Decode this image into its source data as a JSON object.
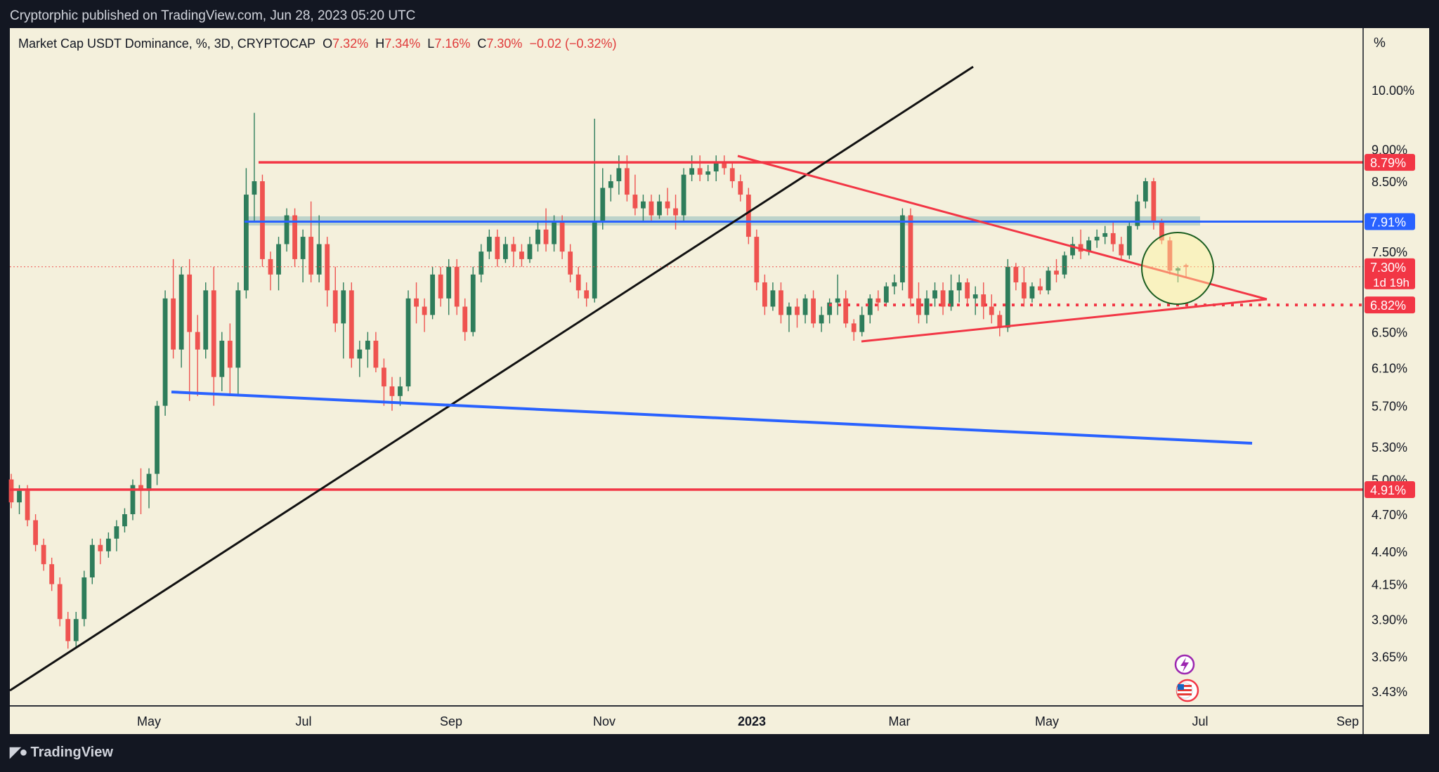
{
  "header": {
    "publisher_line": "Cryptorphic published on TradingView.com, Jun 28, 2023 05:20 UTC"
  },
  "legend": {
    "symbol": "Market Cap USDT Dominance, %, 3D, CRYPTOCAP",
    "o_label": "O",
    "o_value": "7.32%",
    "h_label": "H",
    "h_value": "7.34%",
    "l_label": "L",
    "l_value": "7.16%",
    "c_label": "C",
    "c_value": "7.30%",
    "change": "−0.02 (−0.32%)"
  },
  "price_axis": {
    "unit": "%",
    "ticks": [
      "10.00%",
      "9.00%",
      "8.50%",
      "7.50%",
      "6.50%",
      "6.10%",
      "5.70%",
      "5.30%",
      "5.00%",
      "4.70%",
      "4.40%",
      "4.15%",
      "3.90%",
      "3.65%",
      "3.43%"
    ],
    "badges": [
      {
        "text": "8.79%",
        "color": "#f23645"
      },
      {
        "text": "7.91%",
        "color": "#2962ff"
      },
      {
        "text": "7.30%",
        "sub": "1d 19h",
        "color": "#f23645"
      },
      {
        "text": "6.82%",
        "color": "#f23645"
      },
      {
        "text": "4.91%",
        "color": "#f23645"
      }
    ]
  },
  "time_axis": {
    "labels": [
      "May",
      "Jul",
      "Sep",
      "Nov",
      "2023",
      "Mar",
      "May",
      "Jul",
      "Sep"
    ]
  },
  "footer": {
    "brand": "TradingView"
  },
  "colors": {
    "up": "#26a69a",
    "down": "#ef5350",
    "up_body": "#2e7d5b",
    "background": "#f4f0dc",
    "support_red": "#f23645",
    "trend_blue": "#2962ff"
  },
  "chart_data": {
    "type": "candlestick",
    "title": "Market Cap USDT Dominance, %, 3D, CRYPTOCAP",
    "y_scale": "log",
    "ylim": [
      3.35,
      11.2
    ],
    "candles": [
      [
        5.0,
        5.05,
        4.75,
        4.8
      ],
      [
        4.8,
        4.95,
        4.7,
        4.9
      ],
      [
        4.9,
        4.95,
        4.6,
        4.65
      ],
      [
        4.65,
        4.7,
        4.4,
        4.45
      ],
      [
        4.45,
        4.5,
        4.25,
        4.3
      ],
      [
        4.3,
        4.35,
        4.1,
        4.15
      ],
      [
        4.15,
        4.2,
        3.85,
        3.9
      ],
      [
        3.9,
        3.95,
        3.7,
        3.75
      ],
      [
        3.75,
        3.95,
        3.7,
        3.9
      ],
      [
        3.9,
        4.25,
        3.85,
        4.2
      ],
      [
        4.2,
        4.5,
        4.15,
        4.45
      ],
      [
        4.45,
        4.5,
        4.3,
        4.4
      ],
      [
        4.4,
        4.55,
        4.35,
        4.5
      ],
      [
        4.5,
        4.65,
        4.4,
        4.6
      ],
      [
        4.6,
        4.75,
        4.55,
        4.7
      ],
      [
        4.7,
        5.0,
        4.65,
        4.95
      ],
      [
        4.95,
        5.1,
        4.7,
        4.9
      ],
      [
        4.9,
        5.1,
        4.75,
        5.05
      ],
      [
        5.05,
        5.75,
        4.95,
        5.7
      ],
      [
        5.7,
        7.0,
        5.6,
        6.9
      ],
      [
        6.9,
        7.4,
        6.2,
        6.3
      ],
      [
        6.3,
        7.3,
        6.1,
        7.2
      ],
      [
        7.2,
        7.4,
        5.75,
        6.5
      ],
      [
        6.5,
        6.7,
        5.8,
        6.3
      ],
      [
        6.3,
        7.1,
        6.2,
        7.0
      ],
      [
        7.0,
        7.3,
        5.7,
        6.0
      ],
      [
        6.0,
        6.5,
        5.85,
        6.4
      ],
      [
        6.4,
        6.6,
        5.8,
        6.1
      ],
      [
        6.1,
        7.1,
        5.8,
        7.0
      ],
      [
        7.0,
        8.7,
        6.9,
        8.3
      ],
      [
        8.3,
        9.6,
        7.9,
        8.5
      ],
      [
        8.5,
        8.6,
        7.3,
        7.4
      ],
      [
        7.4,
        7.5,
        7.0,
        7.2
      ],
      [
        7.2,
        7.7,
        7.0,
        7.6
      ],
      [
        7.6,
        8.1,
        7.5,
        8.0
      ],
      [
        8.0,
        8.1,
        7.3,
        7.4
      ],
      [
        7.4,
        7.8,
        7.1,
        7.7
      ],
      [
        7.7,
        8.2,
        7.1,
        7.2
      ],
      [
        7.2,
        8.0,
        7.1,
        7.6
      ],
      [
        7.6,
        7.7,
        6.8,
        7.0
      ],
      [
        7.0,
        7.3,
        6.5,
        6.6
      ],
      [
        6.6,
        7.1,
        6.2,
        7.0
      ],
      [
        7.0,
        7.1,
        6.1,
        6.2
      ],
      [
        6.2,
        6.4,
        6.0,
        6.3
      ],
      [
        6.3,
        6.5,
        6.1,
        6.4
      ],
      [
        6.4,
        6.5,
        6.05,
        6.1
      ],
      [
        6.1,
        6.2,
        5.7,
        5.9
      ],
      [
        5.9,
        6.0,
        5.65,
        5.8
      ],
      [
        5.8,
        6.0,
        5.7,
        5.9
      ],
      [
        5.9,
        7.0,
        5.85,
        6.9
      ],
      [
        6.9,
        7.1,
        6.6,
        6.8
      ],
      [
        6.8,
        6.9,
        6.5,
        6.7
      ],
      [
        6.7,
        7.3,
        6.65,
        7.2
      ],
      [
        7.2,
        7.3,
        6.8,
        6.9
      ],
      [
        6.9,
        7.4,
        6.7,
        7.3
      ],
      [
        7.3,
        7.4,
        6.7,
        6.8
      ],
      [
        6.8,
        6.9,
        6.4,
        6.5
      ],
      [
        6.5,
        7.3,
        6.45,
        7.2
      ],
      [
        7.2,
        7.6,
        7.1,
        7.5
      ],
      [
        7.5,
        7.8,
        7.4,
        7.7
      ],
      [
        7.7,
        7.8,
        7.3,
        7.4
      ],
      [
        7.4,
        7.7,
        7.35,
        7.6
      ],
      [
        7.6,
        7.7,
        7.3,
        7.5
      ],
      [
        7.5,
        7.6,
        7.3,
        7.4
      ],
      [
        7.4,
        7.7,
        7.35,
        7.6
      ],
      [
        7.6,
        7.9,
        7.5,
        7.8
      ],
      [
        7.8,
        8.1,
        7.5,
        7.6
      ],
      [
        7.6,
        8.0,
        7.5,
        7.9
      ],
      [
        7.9,
        8.0,
        7.4,
        7.5
      ],
      [
        7.5,
        7.6,
        7.1,
        7.2
      ],
      [
        7.2,
        7.3,
        6.9,
        7.0
      ],
      [
        7.0,
        7.1,
        6.8,
        6.9
      ],
      [
        6.9,
        9.5,
        6.85,
        7.9
      ],
      [
        7.9,
        8.7,
        7.8,
        8.4
      ],
      [
        8.4,
        8.6,
        8.2,
        8.5
      ],
      [
        8.5,
        8.9,
        8.3,
        8.7
      ],
      [
        8.7,
        8.9,
        8.2,
        8.3
      ],
      [
        8.3,
        8.6,
        8.0,
        8.1
      ],
      [
        8.1,
        8.3,
        7.9,
        8.2
      ],
      [
        8.2,
        8.3,
        7.9,
        8.0
      ],
      [
        8.0,
        8.3,
        7.95,
        8.2
      ],
      [
        8.2,
        8.4,
        8.0,
        8.1
      ],
      [
        8.1,
        8.3,
        7.8,
        8.0
      ],
      [
        8.0,
        8.7,
        7.9,
        8.6
      ],
      [
        8.6,
        8.9,
        8.5,
        8.7
      ],
      [
        8.7,
        8.9,
        8.5,
        8.6
      ],
      [
        8.6,
        8.75,
        8.5,
        8.65
      ],
      [
        8.65,
        8.9,
        8.5,
        8.8
      ],
      [
        8.8,
        8.9,
        8.6,
        8.7
      ],
      [
        8.7,
        8.8,
        8.4,
        8.5
      ],
      [
        8.5,
        8.6,
        8.2,
        8.3
      ],
      [
        8.3,
        8.4,
        7.6,
        7.7
      ],
      [
        7.7,
        7.8,
        7.0,
        7.1
      ],
      [
        7.1,
        7.2,
        6.7,
        6.8
      ],
      [
        6.8,
        7.1,
        6.75,
        7.0
      ],
      [
        7.0,
        7.1,
        6.6,
        6.7
      ],
      [
        6.7,
        6.85,
        6.5,
        6.8
      ],
      [
        6.8,
        6.9,
        6.55,
        6.7
      ],
      [
        6.7,
        6.95,
        6.6,
        6.9
      ],
      [
        6.9,
        7.0,
        6.55,
        6.6
      ],
      [
        6.6,
        6.8,
        6.5,
        6.7
      ],
      [
        6.7,
        6.9,
        6.6,
        6.85
      ],
      [
        6.85,
        7.2,
        6.7,
        6.9
      ],
      [
        6.9,
        7.0,
        6.55,
        6.6
      ],
      [
        6.6,
        6.65,
        6.4,
        6.5
      ],
      [
        6.5,
        6.8,
        6.45,
        6.7
      ],
      [
        6.7,
        6.95,
        6.6,
        6.9
      ],
      [
        6.9,
        7.0,
        6.75,
        6.85
      ],
      [
        6.85,
        7.1,
        6.8,
        7.05
      ],
      [
        7.05,
        7.2,
        6.95,
        7.1
      ],
      [
        7.1,
        8.1,
        7.0,
        8.0
      ],
      [
        8.0,
        8.1,
        6.8,
        6.9
      ],
      [
        6.9,
        7.1,
        6.6,
        6.7
      ],
      [
        6.7,
        7.0,
        6.6,
        6.9
      ],
      [
        6.9,
        7.1,
        6.8,
        7.0
      ],
      [
        7.0,
        7.1,
        6.7,
        6.8
      ],
      [
        6.8,
        7.2,
        6.75,
        7.0
      ],
      [
        7.0,
        7.2,
        6.85,
        7.1
      ],
      [
        7.1,
        7.15,
        6.8,
        6.9
      ],
      [
        6.9,
        7.05,
        6.7,
        6.95
      ],
      [
        6.95,
        7.1,
        6.65,
        6.8
      ],
      [
        6.8,
        6.95,
        6.6,
        6.7
      ],
      [
        6.7,
        6.75,
        6.45,
        6.55
      ],
      [
        6.55,
        7.4,
        6.5,
        7.3
      ],
      [
        7.3,
        7.35,
        7.0,
        7.1
      ],
      [
        7.1,
        7.3,
        6.8,
        6.9
      ],
      [
        6.9,
        7.1,
        6.85,
        7.05
      ],
      [
        7.05,
        7.15,
        6.95,
        7.0
      ],
      [
        7.0,
        7.3,
        6.95,
        7.25
      ],
      [
        7.25,
        7.4,
        7.1,
        7.2
      ],
      [
        7.2,
        7.5,
        7.15,
        7.45
      ],
      [
        7.45,
        7.7,
        7.4,
        7.6
      ],
      [
        7.6,
        7.8,
        7.4,
        7.5
      ],
      [
        7.5,
        7.7,
        7.45,
        7.65
      ],
      [
        7.65,
        7.8,
        7.55,
        7.7
      ],
      [
        7.7,
        7.85,
        7.6,
        7.75
      ],
      [
        7.75,
        7.9,
        7.5,
        7.6
      ],
      [
        7.6,
        7.7,
        7.4,
        7.45
      ],
      [
        7.45,
        7.9,
        7.4,
        7.85
      ],
      [
        7.85,
        8.3,
        7.8,
        8.2
      ],
      [
        8.2,
        8.55,
        8.1,
        8.5
      ],
      [
        8.5,
        8.55,
        7.8,
        7.9
      ],
      [
        7.9,
        7.95,
        7.6,
        7.65
      ],
      [
        7.65,
        7.7,
        7.2,
        7.25
      ],
      [
        7.25,
        7.3,
        7.1,
        7.28
      ],
      [
        7.32,
        7.34,
        7.16,
        7.3
      ]
    ],
    "horizontal_levels": [
      8.79,
      7.91,
      6.82,
      4.91
    ],
    "last_price": 7.3,
    "countdown": "1d 19h"
  }
}
